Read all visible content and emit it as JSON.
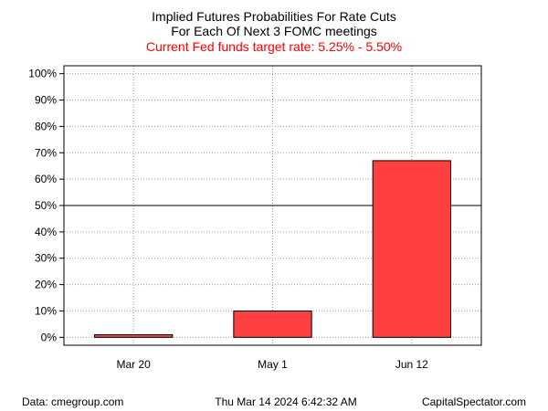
{
  "title_lines": [
    "Implied Futures Probabilities For Rate Cuts",
    "For Each Of Next 3 FOMC meetings"
  ],
  "subtitle": "Current Fed funds target rate: 5.25% - 5.50%",
  "colors": {
    "bar": "#ff4040",
    "subtitle": "#ff0000",
    "grid": "#a0a0a0"
  },
  "chart_data": {
    "type": "bar",
    "categories": [
      "Mar 20",
      "May 1",
      "Jun 12"
    ],
    "values": [
      1,
      10,
      67
    ],
    "y_unit": "%",
    "ylim": [
      -3,
      103
    ],
    "yticks": [
      0,
      10,
      20,
      30,
      40,
      50,
      60,
      70,
      80,
      90,
      100
    ],
    "ytick_labels": [
      "0%",
      "10%",
      "20%",
      "30%",
      "40%",
      "50%",
      "60%",
      "70%",
      "80%",
      "90%",
      "100%"
    ],
    "reference_line": 50,
    "grid": true
  },
  "footer": {
    "source": "Data: cmegroup.com",
    "timestamp": "Thu Mar 14 2024 6:42:32 AM",
    "credit": "CapitalSpectator.com"
  }
}
